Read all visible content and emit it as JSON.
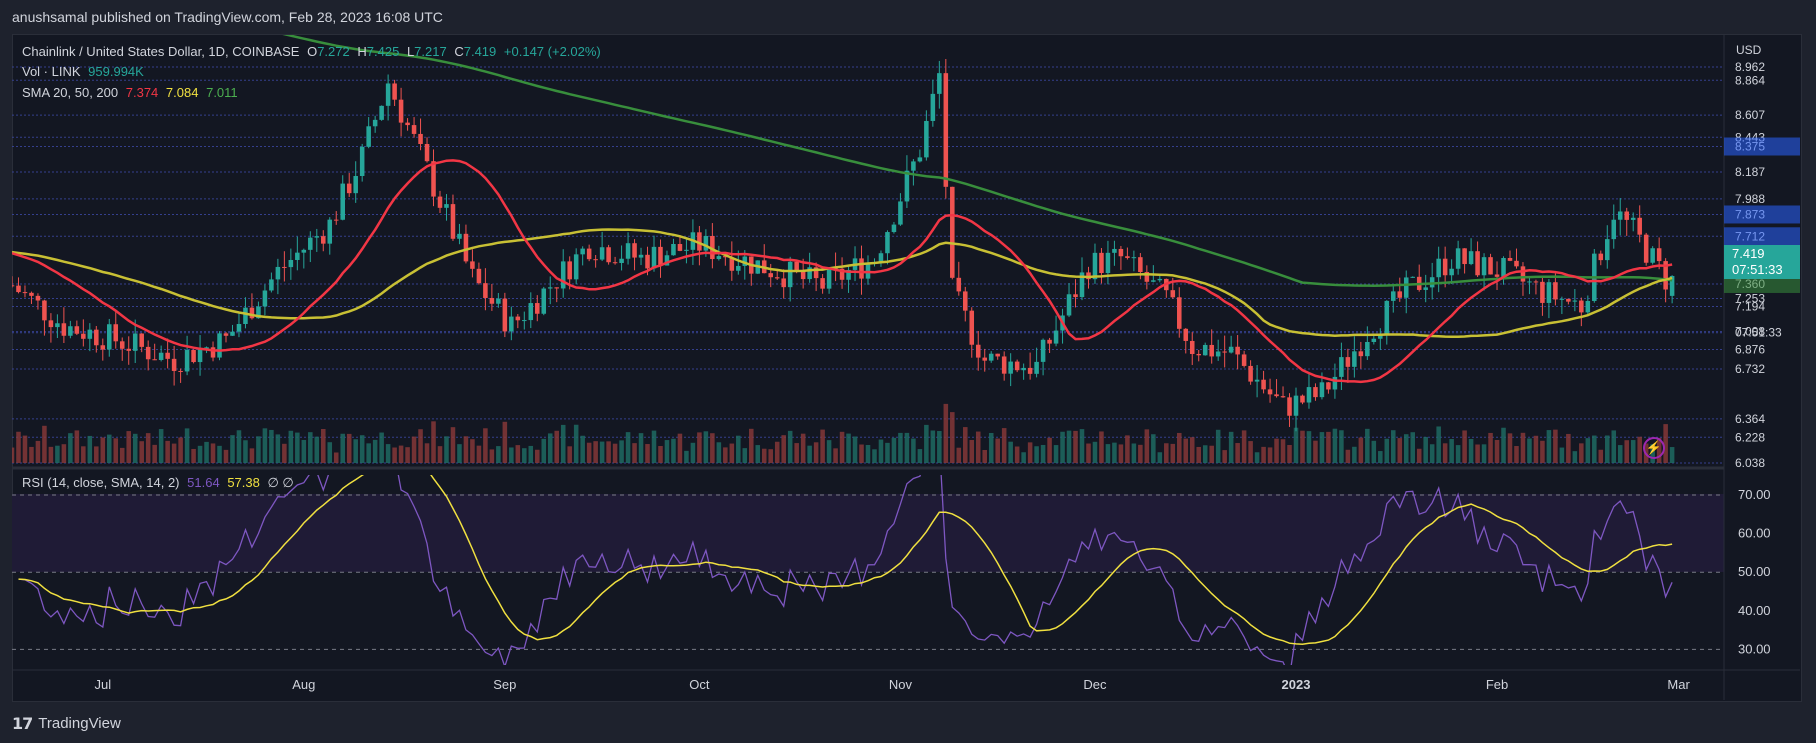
{
  "header": {
    "publish_line": "anushsamal published on TradingView.com, Feb 28, 2023 16:08 UTC"
  },
  "legend": {
    "symbol_line": "Chainlink / United States Dollar, 1D, COINBASE",
    "o_label": "O",
    "o_value": "7.272",
    "h_label": "H",
    "h_value": "7.425",
    "l_label": "L",
    "l_value": "7.217",
    "c_label": "C",
    "c_value": "7.419",
    "change": "+0.147 (+2.02%)",
    "vol_label": "Vol · LINK",
    "vol_value": "959.994K",
    "sma_label": "SMA 20, 50, 200",
    "sma20": "7.374",
    "sma50": "7.084",
    "sma200": "7.011",
    "rsi_label": "RSI (14, close, SMA, 14, 2)",
    "rsi_value": "51.64",
    "rsi_sma": "57.38",
    "rsi_extra": "∅ ∅"
  },
  "price_axis": {
    "currency": "USD",
    "labels": [
      "8.962",
      "8.864",
      "8.607",
      "8.443",
      "8.375",
      "8.187",
      "7.988",
      "7.873",
      "7.712",
      "7.419",
      "07:51:33",
      "7.360",
      "7.253",
      "7.194",
      "7.008",
      "6.876",
      "6.732",
      "6.364",
      "6.228",
      "6.038"
    ],
    "last_price": "7.419",
    "countdown": "07:51:33"
  },
  "rsi_axis": {
    "labels": [
      "70.00",
      "60.00",
      "50.00",
      "40.00",
      "30.00"
    ]
  },
  "time_axis": {
    "labels": [
      "Jul",
      "Aug",
      "Sep",
      "Oct",
      "Nov",
      "Dec",
      "2023",
      "Feb",
      "Mar"
    ]
  },
  "footer": {
    "brand": "TradingView"
  },
  "colors": {
    "up": "#26a69a",
    "down": "#ef5350",
    "sma20": "#f23645",
    "sma50": "#c8c034",
    "sma200": "#388e3c",
    "rsi": "#7e57c2",
    "rsi_sma": "#f0e040",
    "grid": "#3a46a0"
  },
  "chart_data": [
    {
      "type": "candlestick",
      "title": "Chainlink / United States Dollar, 1D, COINBASE",
      "x": [
        "2022-06-17",
        "2022-07-15",
        "2022-08-15",
        "2022-09-15",
        "2022-10-15",
        "2022-11-07",
        "2022-11-20",
        "2022-12-20",
        "2023-01-10",
        "2023-02-02",
        "2023-02-20",
        "2023-02-28"
      ],
      "close": [
        7.4,
        6.9,
        8.9,
        7.3,
        7.6,
        8.95,
        6.6,
        6.4,
        6.7,
        7.6,
        7.95,
        7.419
      ],
      "last": {
        "open": 7.272,
        "high": 7.425,
        "low": 7.217,
        "close": 7.419,
        "change": 0.147,
        "change_pct": 2.02
      },
      "ylim": [
        6.038,
        8.962
      ],
      "sma": [
        {
          "name": "SMA 20",
          "last": 7.374
        },
        {
          "name": "SMA 50",
          "last": 7.084
        },
        {
          "name": "SMA 200",
          "last": 7.011
        }
      ],
      "volume": {
        "name": "Vol · LINK",
        "last": 959994
      }
    },
    {
      "type": "line",
      "title": "RSI (14, close, SMA, 14, 2)",
      "x": [
        "2022-06-17",
        "2022-08-15",
        "2022-09-05",
        "2022-11-07",
        "2023-01-01",
        "2023-01-20",
        "2023-02-28"
      ],
      "series": [
        {
          "name": "RSI",
          "values": [
            47,
            72,
            32,
            69,
            31,
            70,
            51.64
          ]
        },
        {
          "name": "SMA",
          "values": [
            48,
            63,
            40,
            57,
            37,
            61,
            57.38
          ]
        }
      ],
      "ylim": [
        25,
        75
      ],
      "ticks": [
        70,
        60,
        50,
        40,
        30
      ]
    }
  ]
}
